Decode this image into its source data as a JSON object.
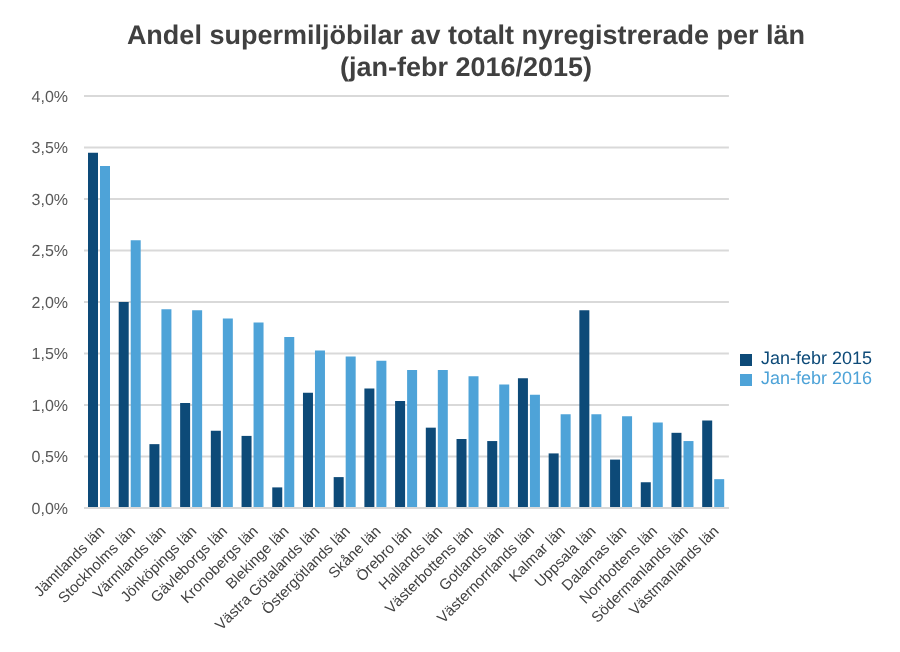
{
  "chart_data": {
    "type": "bar",
    "title": "Andel supermiljöbilar av totalt nyregistrerade per län",
    "subtitle": "(jan-febr 2016/2015)",
    "categories": [
      "Jämtlands län",
      "Stockholms län",
      "Värmlands län",
      "Jönköpings län",
      "Gävleborgs län",
      "Kronobergs län",
      "Blekinge län",
      "Västra Götalands län",
      "Östergötlands län",
      "Skåne län",
      "Örebro län",
      "Hallands län",
      "Västerbottens län",
      "Gotlands län",
      "Västernorrlands län",
      "Kalmar län",
      "Uppsala län",
      "Dalarnas län",
      "Norrbottens län",
      "Södermanlands län",
      "Västmanlands län"
    ],
    "series": [
      {
        "name": "Jan-febr 2015",
        "color": "#0d4a78",
        "values": [
          3.45,
          2.0,
          0.62,
          1.02,
          0.75,
          0.7,
          0.2,
          1.12,
          0.3,
          1.16,
          1.04,
          0.78,
          0.67,
          0.65,
          1.26,
          0.53,
          1.92,
          0.47,
          0.25,
          0.73,
          0.85
        ]
      },
      {
        "name": "Jan-febr 2016",
        "color": "#4ea3d8",
        "values": [
          3.32,
          2.6,
          1.93,
          1.92,
          1.84,
          1.8,
          1.66,
          1.53,
          1.47,
          1.43,
          1.34,
          1.34,
          1.28,
          1.2,
          1.1,
          0.91,
          0.91,
          0.89,
          0.83,
          0.65,
          0.28
        ]
      }
    ],
    "ylim": [
      0,
      4
    ],
    "yticks": [
      {
        "value": 0,
        "label": "0,0%"
      },
      {
        "value": 0.5,
        "label": "0,5%"
      },
      {
        "value": 1,
        "label": "1,0%"
      },
      {
        "value": 1.5,
        "label": "1,5%"
      },
      {
        "value": 2,
        "label": "2,0%"
      },
      {
        "value": 2.5,
        "label": "2,5%"
      },
      {
        "value": 3,
        "label": "3,0%"
      },
      {
        "value": 3.5,
        "label": "3,5%"
      },
      {
        "value": 4,
        "label": "4,0%"
      }
    ],
    "grid": "y",
    "legend": "right"
  }
}
